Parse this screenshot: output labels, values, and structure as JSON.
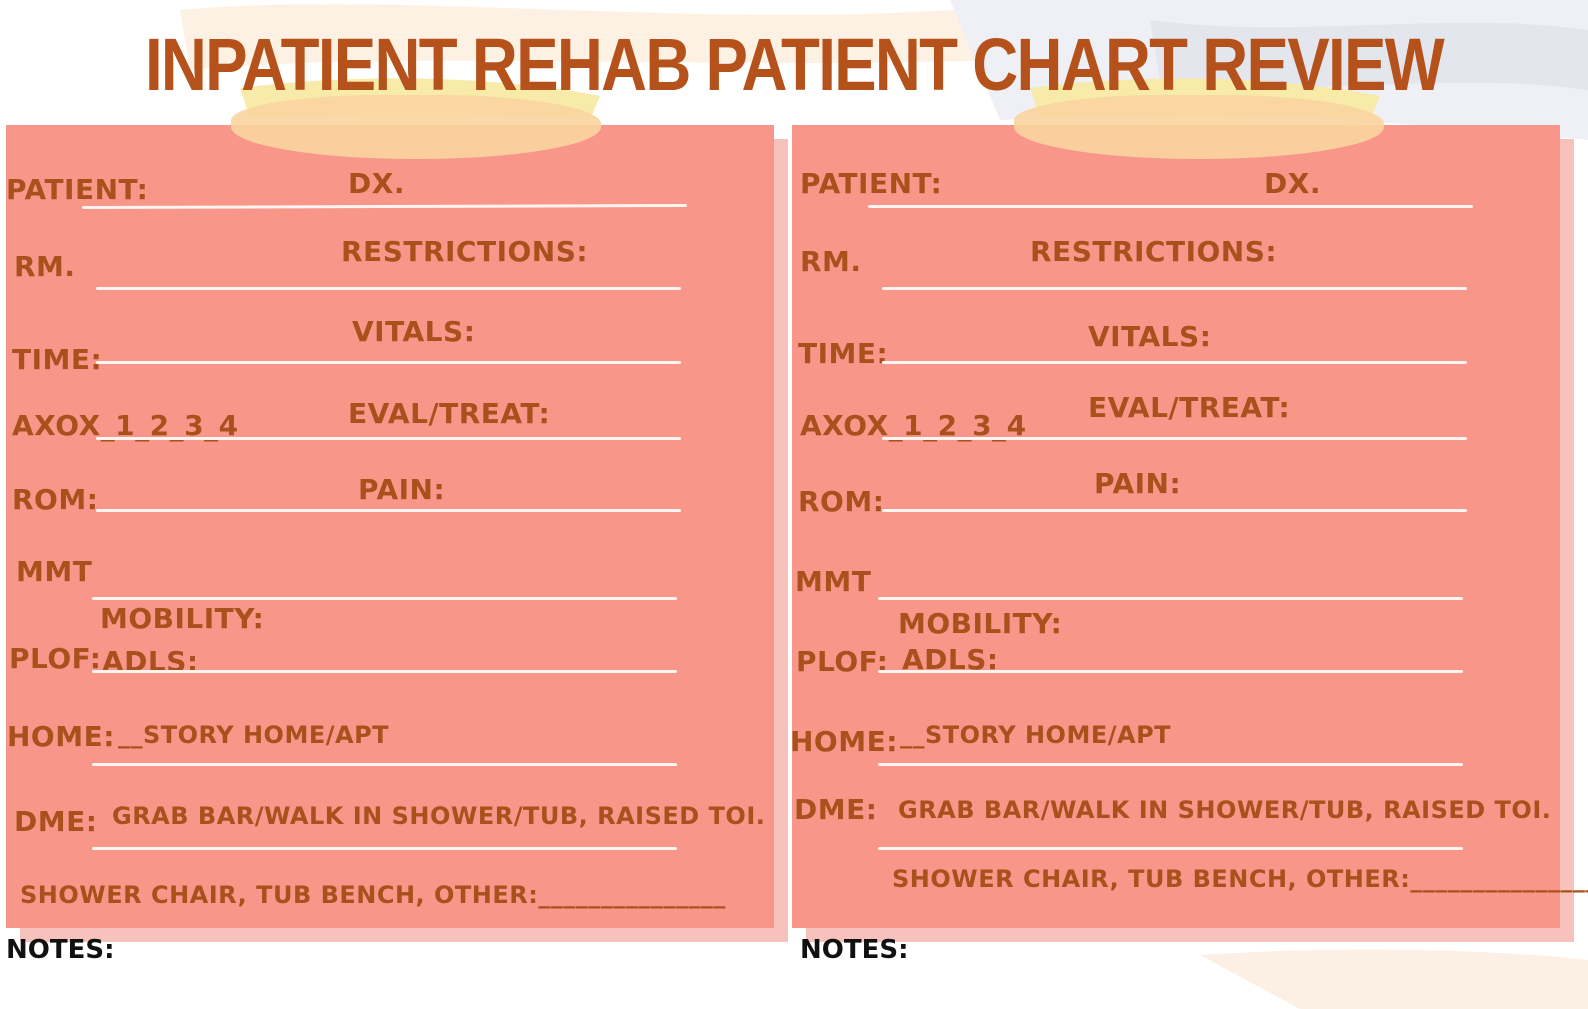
{
  "title": "INPATIENT REHAB PATIENT CHART REVIEW",
  "cards": [
    {
      "patient": "PATIENT:",
      "dx": "DX.",
      "rm": "RM.",
      "restrictions": "RESTRICTIONS:",
      "time": "TIME:",
      "vitals": "VITALS:",
      "axox": "AXOX_1_2_3_4",
      "eval": "EVAL/TREAT:",
      "rom": "ROM:",
      "pain": "PAIN:",
      "mmt": "MMT",
      "mobility": "MOBILITY:",
      "plof": "PLOF:",
      "adls": "ADLS:",
      "home": "HOME:",
      "home_val": "__STORY HOME/APT",
      "dme": "DME:",
      "dme_val": "GRAB BAR/WALK IN SHOWER/TUB, RAISED TOI.",
      "dme_more": "SHOWER CHAIR, TUB BENCH, OTHER:_______________"
    },
    {
      "patient": "PATIENT:",
      "dx": "DX.",
      "rm": "RM.",
      "restrictions": "RESTRICTIONS:",
      "time": "TIME:",
      "vitals": "VITALS:",
      "axox": "AXOX_1_2_3_4",
      "eval": "EVAL/TREAT:",
      "rom": "ROM:",
      "pain": "PAIN:",
      "mmt": "MMT",
      "mobility": "MOBILITY:",
      "plof": "PLOF:",
      "adls": "ADLS:",
      "home": "HOME:",
      "home_val": "__STORY HOME/APT",
      "dme": "DME:",
      "dme_val": "GRAB BAR/WALK IN SHOWER/TUB, RAISED TOI.",
      "dme_more": "SHOWER CHAIR, TUB BENCH, OTHER:_______________"
    }
  ],
  "notes": [
    "NOTES:",
    "NOTES:"
  ],
  "colors": {
    "title": "#b5511a",
    "card": "#f8968a",
    "label": "#a9501c",
    "tape": "#fad49f"
  }
}
